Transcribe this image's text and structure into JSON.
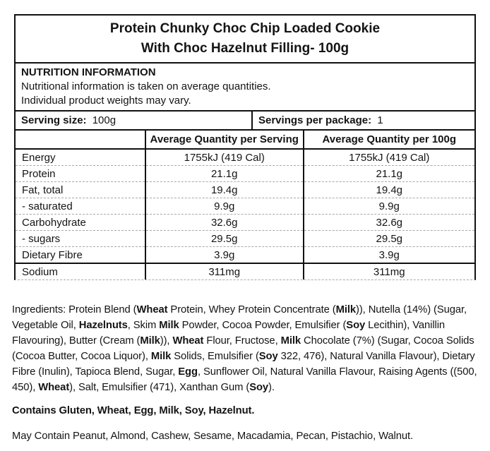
{
  "title": {
    "line1": "Protein Chunky Choc Chip Loaded Cookie",
    "line2": "With Choc Hazelnut Filling- 100g"
  },
  "info": {
    "heading": "NUTRITION INFORMATION",
    "note1": "Nutritional information is taken on average quantities.",
    "note2": "Individual product weights may vary."
  },
  "serving": {
    "size_label": "Serving size:",
    "size_value": "100g",
    "per_package_label": "Servings per package:",
    "per_package_value": "1"
  },
  "table": {
    "col_headers": [
      "",
      "Average Quantity per Serving",
      "Average Quantity per 100g"
    ],
    "rows": [
      {
        "label": "Energy",
        "per_serving": "1755kJ (419 Cal)",
        "per_100g": "1755kJ (419 Cal)"
      },
      {
        "label": "Protein",
        "per_serving": "21.1g",
        "per_100g": "21.1g"
      },
      {
        "label": "Fat, total",
        "per_serving": "19.4g",
        "per_100g": "19.4g"
      },
      {
        "label": "- saturated",
        "per_serving": "9.9g",
        "per_100g": "9.9g"
      },
      {
        "label": "Carbohydrate",
        "per_serving": "32.6g",
        "per_100g": "32.6g"
      },
      {
        "label": "- sugars",
        "per_serving": "29.5g",
        "per_100g": "29.5g"
      },
      {
        "label": "Dietary Fibre",
        "per_serving": "3.9g",
        "per_100g": "3.9g"
      },
      {
        "label": "Sodium",
        "per_serving": "311mg",
        "per_100g": "311mg"
      }
    ]
  },
  "ingredients": {
    "segments": [
      {
        "text": "Ingredients: Protein Blend (",
        "bold": false
      },
      {
        "text": "Wheat",
        "bold": true
      },
      {
        "text": " Protein, Whey Protein Concentrate (",
        "bold": false
      },
      {
        "text": "Milk",
        "bold": true
      },
      {
        "text": ")), Nutella (14%) (Sugar, Vegetable Oil, ",
        "bold": false
      },
      {
        "text": "Hazelnuts",
        "bold": true
      },
      {
        "text": ", Skim ",
        "bold": false
      },
      {
        "text": "Milk",
        "bold": true
      },
      {
        "text": " Powder, Cocoa Powder, Emulsifier (",
        "bold": false
      },
      {
        "text": "Soy",
        "bold": true
      },
      {
        "text": " Lecithin), Vanillin Flavouring), Butter (Cream (",
        "bold": false
      },
      {
        "text": "Milk",
        "bold": true
      },
      {
        "text": ")), ",
        "bold": false
      },
      {
        "text": "Wheat",
        "bold": true
      },
      {
        "text": " Flour, Fructose, ",
        "bold": false
      },
      {
        "text": "Milk",
        "bold": true
      },
      {
        "text": " Chocolate (7%) (Sugar, Cocoa Solids (Cocoa Butter, Cocoa Liquor), ",
        "bold": false
      },
      {
        "text": "Milk",
        "bold": true
      },
      {
        "text": " Solids, Emulsifier (",
        "bold": false
      },
      {
        "text": "Soy",
        "bold": true
      },
      {
        "text": " 322, 476), Natural Vanilla Flavour), Dietary Fibre (Inulin), Tapioca Blend, Sugar, ",
        "bold": false
      },
      {
        "text": "Egg",
        "bold": true
      },
      {
        "text": ", Sunflower Oil, Natural Vanilla Flavour, Raising Agents ((500, 450), ",
        "bold": false
      },
      {
        "text": "Wheat",
        "bold": true
      },
      {
        "text": "), Salt, Emulsifier (471), Xanthan Gum (",
        "bold": false
      },
      {
        "text": "Soy",
        "bold": true
      },
      {
        "text": ").",
        "bold": false
      }
    ]
  },
  "contains": "Contains Gluten, Wheat, Egg, Milk, Soy, Hazelnut.",
  "may_contain": "May Contain Peanut, Almond, Cashew, Sesame, Macadamia, Pecan, Pistachio, Walnut.",
  "colors": {
    "text": "#141414",
    "solid_line": "#111111",
    "dashed_line": "#a8a8a8",
    "background": "#ffffff"
  }
}
